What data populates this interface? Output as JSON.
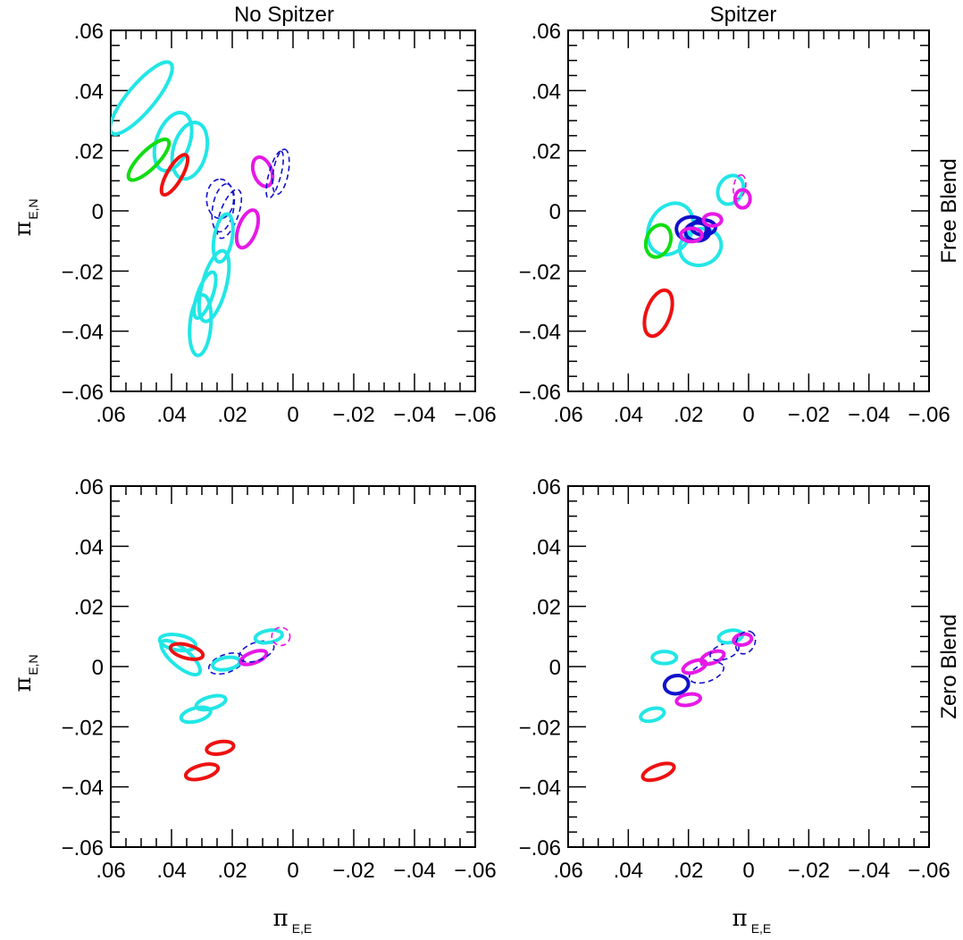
{
  "colors": {
    "red": "#ee1111",
    "green": "#11dd11",
    "cyan": "#22e6e6",
    "blue": "#1111cc",
    "magenta": "#e619e6",
    "frame": "#000000"
  },
  "figure": {
    "column_titles": [
      "No Spitzer",
      "Spitzer"
    ],
    "row_titles": [
      "Free Blend",
      "Zero Blend"
    ],
    "xlabel": "π",
    "xlabel_sub": "E,E",
    "ylabel": "π",
    "ylabel_sub": "E,N"
  },
  "chart_data": [
    {
      "type": "scatter",
      "title": "No Spitzer",
      "row_label": "Free Blend",
      "xlim": [
        0.06,
        -0.06
      ],
      "ylim": [
        -0.06,
        0.06
      ],
      "x_ticks": [
        ".06",
        ".04",
        ".02",
        "0",
        "−.02",
        "−.04",
        "−.06"
      ],
      "y_ticks": [
        "−.06",
        "−.04",
        "−.02",
        "0",
        ".02",
        ".04",
        ".06"
      ],
      "grid": false,
      "ellipses": [
        {
          "color": "cyan",
          "dashed": false,
          "cx": 0.05,
          "cy": 0.0375,
          "rx": 0.015,
          "ry": 0.0045,
          "angle": 50
        },
        {
          "color": "cyan",
          "dashed": false,
          "cx": 0.0395,
          "cy": 0.023,
          "rx": 0.01,
          "ry": 0.0055,
          "angle": 70
        },
        {
          "color": "cyan",
          "dashed": false,
          "cx": 0.034,
          "cy": 0.02,
          "rx": 0.0095,
          "ry": 0.0055,
          "angle": 75
        },
        {
          "color": "green",
          "dashed": false,
          "cx": 0.0475,
          "cy": 0.017,
          "rx": 0.009,
          "ry": 0.003,
          "angle": 45
        },
        {
          "color": "red",
          "dashed": false,
          "cx": 0.039,
          "cy": 0.012,
          "rx": 0.0075,
          "ry": 0.0025,
          "angle": 60
        },
        {
          "color": "magenta",
          "dashed": false,
          "cx": 0.01,
          "cy": 0.013,
          "rx": 0.005,
          "ry": 0.003,
          "angle": 110
        },
        {
          "color": "blue",
          "dashed": true,
          "cx": 0.006,
          "cy": 0.012,
          "rx": 0.008,
          "ry": 0.002,
          "angle": 75
        },
        {
          "color": "blue",
          "dashed": true,
          "cx": 0.004,
          "cy": 0.013,
          "rx": 0.0075,
          "ry": 0.0025,
          "angle": 80
        },
        {
          "color": "blue",
          "dashed": true,
          "cx": 0.024,
          "cy": 0.004,
          "rx": 0.0065,
          "ry": 0.0045,
          "angle": 90
        },
        {
          "color": "blue",
          "dashed": true,
          "cx": 0.023,
          "cy": 0.001,
          "rx": 0.008,
          "ry": 0.0035,
          "angle": 80
        },
        {
          "color": "blue",
          "dashed": true,
          "cx": 0.021,
          "cy": -0.001,
          "rx": 0.0085,
          "ry": 0.003,
          "angle": 70
        },
        {
          "color": "magenta",
          "dashed": false,
          "cx": 0.015,
          "cy": -0.006,
          "rx": 0.0065,
          "ry": 0.003,
          "angle": 70
        },
        {
          "color": "cyan",
          "dashed": false,
          "cx": 0.023,
          "cy": -0.009,
          "rx": 0.008,
          "ry": 0.003,
          "angle": 80
        },
        {
          "color": "cyan",
          "dashed": false,
          "cx": 0.026,
          "cy": -0.025,
          "rx": 0.012,
          "ry": 0.004,
          "angle": 75
        },
        {
          "color": "cyan",
          "dashed": false,
          "cx": 0.029,
          "cy": -0.028,
          "rx": 0.008,
          "ry": 0.0025,
          "angle": 70
        },
        {
          "color": "cyan",
          "dashed": false,
          "cx": 0.0305,
          "cy": -0.038,
          "rx": 0.01,
          "ry": 0.0035,
          "angle": 85
        }
      ]
    },
    {
      "type": "scatter",
      "title": "Spitzer",
      "row_label": "Free Blend",
      "xlim": [
        0.06,
        -0.06
      ],
      "ylim": [
        -0.06,
        0.06
      ],
      "x_ticks": [
        ".06",
        ".04",
        ".02",
        "0",
        "−.02",
        "−.04",
        "−.06"
      ],
      "y_ticks": [
        "−.06",
        "−.04",
        "−.02",
        "0",
        ".02",
        ".04",
        ".06"
      ],
      "grid": false,
      "ellipses": [
        {
          "color": "cyan",
          "dashed": false,
          "cx": 0.026,
          "cy": -0.006,
          "rx": 0.009,
          "ry": 0.007,
          "angle": 60
        },
        {
          "color": "cyan",
          "dashed": false,
          "cx": 0.016,
          "cy": -0.012,
          "rx": 0.007,
          "ry": 0.006,
          "angle": 20
        },
        {
          "color": "green",
          "dashed": false,
          "cx": 0.03,
          "cy": -0.01,
          "rx": 0.0055,
          "ry": 0.004,
          "angle": 70
        },
        {
          "color": "red",
          "dashed": false,
          "cx": 0.03,
          "cy": -0.034,
          "rx": 0.008,
          "ry": 0.004,
          "angle": 70
        },
        {
          "color": "blue",
          "dashed": false,
          "cx": 0.019,
          "cy": -0.006,
          "rx": 0.005,
          "ry": 0.004,
          "angle": 0
        },
        {
          "color": "blue",
          "dashed": false,
          "cx": 0.017,
          "cy": -0.007,
          "rx": 0.004,
          "ry": 0.003,
          "angle": 0
        },
        {
          "color": "blue",
          "dashed": false,
          "cx": 0.015,
          "cy": -0.0055,
          "rx": 0.004,
          "ry": 0.0025,
          "angle": 0
        },
        {
          "color": "magenta",
          "dashed": false,
          "cx": 0.019,
          "cy": -0.008,
          "rx": 0.0035,
          "ry": 0.0022,
          "angle": 0
        },
        {
          "color": "magenta",
          "dashed": false,
          "cx": 0.012,
          "cy": -0.003,
          "rx": 0.003,
          "ry": 0.002,
          "angle": 0
        },
        {
          "color": "cyan",
          "dashed": false,
          "cx": 0.006,
          "cy": 0.007,
          "rx": 0.005,
          "ry": 0.004,
          "angle": 60
        },
        {
          "color": "magenta",
          "dashed": false,
          "cx": 0.002,
          "cy": 0.004,
          "rx": 0.0025,
          "ry": 0.003,
          "angle": 0
        },
        {
          "color": "magenta",
          "dashed": true,
          "cx": 0.003,
          "cy": 0.008,
          "rx": 0.004,
          "ry": 0.002,
          "angle": 80
        }
      ]
    },
    {
      "type": "scatter",
      "title": "No Spitzer",
      "row_label": "Zero Blend",
      "xlim": [
        0.06,
        -0.06
      ],
      "ylim": [
        -0.06,
        0.06
      ],
      "x_ticks": [
        ".06",
        ".04",
        ".02",
        "0",
        "−.02",
        "−.04",
        "−.06"
      ],
      "y_ticks": [
        "−.06",
        "−.04",
        "−.02",
        "0",
        ".02",
        ".04",
        ".06"
      ],
      "grid": false,
      "ellipses": [
        {
          "color": "cyan",
          "dashed": false,
          "cx": 0.038,
          "cy": 0.008,
          "rx": 0.006,
          "ry": 0.0025,
          "angle": -10
        },
        {
          "color": "cyan",
          "dashed": false,
          "cx": 0.037,
          "cy": 0.003,
          "rx": 0.008,
          "ry": 0.003,
          "angle": -40
        },
        {
          "color": "red",
          "dashed": false,
          "cx": 0.035,
          "cy": 0.005,
          "rx": 0.0055,
          "ry": 0.0022,
          "angle": -15
        },
        {
          "color": "blue",
          "dashed": true,
          "cx": 0.022,
          "cy": 0.001,
          "rx": 0.006,
          "ry": 0.003,
          "angle": 20
        },
        {
          "color": "cyan",
          "dashed": false,
          "cx": 0.022,
          "cy": 0.001,
          "rx": 0.0045,
          "ry": 0.002,
          "angle": 10
        },
        {
          "color": "magenta",
          "dashed": false,
          "cx": 0.013,
          "cy": 0.003,
          "rx": 0.0045,
          "ry": 0.0018,
          "angle": 20
        },
        {
          "color": "blue",
          "dashed": true,
          "cx": 0.012,
          "cy": 0.005,
          "rx": 0.006,
          "ry": 0.003,
          "angle": 20
        },
        {
          "color": "cyan",
          "dashed": false,
          "cx": 0.008,
          "cy": 0.01,
          "rx": 0.0045,
          "ry": 0.002,
          "angle": 10
        },
        {
          "color": "magenta",
          "dashed": true,
          "cx": 0.004,
          "cy": 0.01,
          "rx": 0.003,
          "ry": 0.003,
          "angle": 0
        },
        {
          "color": "cyan",
          "dashed": false,
          "cx": 0.032,
          "cy": -0.016,
          "rx": 0.005,
          "ry": 0.0022,
          "angle": 15
        },
        {
          "color": "cyan",
          "dashed": false,
          "cx": 0.027,
          "cy": -0.012,
          "rx": 0.005,
          "ry": 0.002,
          "angle": 15
        },
        {
          "color": "red",
          "dashed": false,
          "cx": 0.024,
          "cy": -0.027,
          "rx": 0.0045,
          "ry": 0.002,
          "angle": 10
        },
        {
          "color": "red",
          "dashed": false,
          "cx": 0.03,
          "cy": -0.035,
          "rx": 0.0055,
          "ry": 0.0022,
          "angle": 15
        }
      ]
    },
    {
      "type": "scatter",
      "title": "Spitzer",
      "row_label": "Zero Blend",
      "xlim": [
        0.06,
        -0.06
      ],
      "ylim": [
        -0.06,
        0.06
      ],
      "x_ticks": [
        ".06",
        ".04",
        ".02",
        "0",
        "−.02",
        "−.04",
        "−.06"
      ],
      "y_ticks": [
        "−.06",
        "−.04",
        "−.02",
        "0",
        ".02",
        ".04",
        ".06"
      ],
      "grid": false,
      "ellipses": [
        {
          "color": "cyan",
          "dashed": false,
          "cx": 0.028,
          "cy": 0.003,
          "rx": 0.004,
          "ry": 0.002,
          "angle": 0
        },
        {
          "color": "blue",
          "dashed": false,
          "cx": 0.024,
          "cy": -0.006,
          "rx": 0.004,
          "ry": 0.003,
          "angle": 10
        },
        {
          "color": "blue",
          "dashed": true,
          "cx": 0.014,
          "cy": -0.002,
          "rx": 0.006,
          "ry": 0.003,
          "angle": 20
        },
        {
          "color": "magenta",
          "dashed": false,
          "cx": 0.018,
          "cy": 0.0,
          "rx": 0.004,
          "ry": 0.0018,
          "angle": 20
        },
        {
          "color": "magenta",
          "dashed": false,
          "cx": 0.012,
          "cy": 0.003,
          "rx": 0.004,
          "ry": 0.0018,
          "angle": 20
        },
        {
          "color": "magenta",
          "dashed": false,
          "cx": 0.02,
          "cy": -0.011,
          "rx": 0.004,
          "ry": 0.0018,
          "angle": 10
        },
        {
          "color": "blue",
          "dashed": true,
          "cx": 0.008,
          "cy": 0.005,
          "rx": 0.005,
          "ry": 0.0025,
          "angle": 20
        },
        {
          "color": "cyan",
          "dashed": false,
          "cx": 0.006,
          "cy": 0.01,
          "rx": 0.004,
          "ry": 0.002,
          "angle": 10
        },
        {
          "color": "magenta",
          "dashed": false,
          "cx": 0.002,
          "cy": 0.009,
          "rx": 0.003,
          "ry": 0.0018,
          "angle": 10
        },
        {
          "color": "blue",
          "dashed": true,
          "cx": 0.001,
          "cy": 0.008,
          "rx": 0.004,
          "ry": 0.003,
          "angle": 60
        },
        {
          "color": "cyan",
          "dashed": false,
          "cx": 0.032,
          "cy": -0.016,
          "rx": 0.004,
          "ry": 0.002,
          "angle": 15
        },
        {
          "color": "red",
          "dashed": false,
          "cx": 0.03,
          "cy": -0.035,
          "rx": 0.0055,
          "ry": 0.0022,
          "angle": 20
        }
      ]
    }
  ]
}
